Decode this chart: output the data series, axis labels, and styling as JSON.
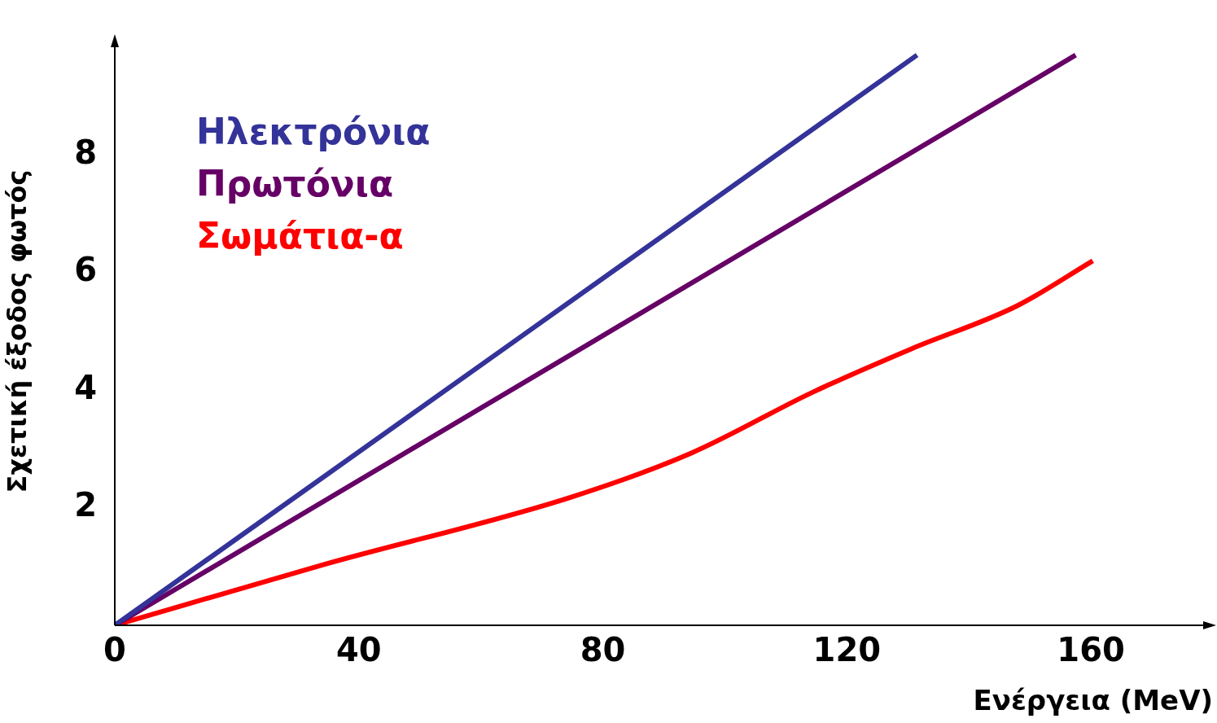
{
  "chart_data": {
    "type": "line",
    "xlabel": "Ενέργεια (MeV)",
    "ylabel": "Σχετική έξοδος φωτός",
    "xlim": [
      0,
      180
    ],
    "xticks": [
      0,
      40,
      80,
      120,
      160
    ],
    "ylim": [
      0,
      10
    ],
    "yticks": [
      2,
      4,
      6,
      8
    ],
    "grid": false,
    "legend": "top left",
    "marker": "none",
    "line_style": "solid",
    "series": [
      {
        "name": "Ηλεκτρόνια",
        "color": "#333399",
        "x": [
          0,
          131.5
        ],
        "values": [
          0,
          9.7
        ]
      },
      {
        "name": "Πρωτόνια",
        "color": "#660066",
        "x": [
          0,
          157.5
        ],
        "values": [
          0,
          9.7
        ]
      },
      {
        "name": "Σωμάτια-α",
        "color": "#ff0000",
        "x": [
          0,
          34.5,
          74.5,
          94.5,
          114.5,
          130.5,
          148,
          160.3
        ],
        "values": [
          0,
          1.04,
          2.17,
          2.93,
          3.97,
          4.7,
          5.44,
          6.2
        ]
      }
    ]
  }
}
